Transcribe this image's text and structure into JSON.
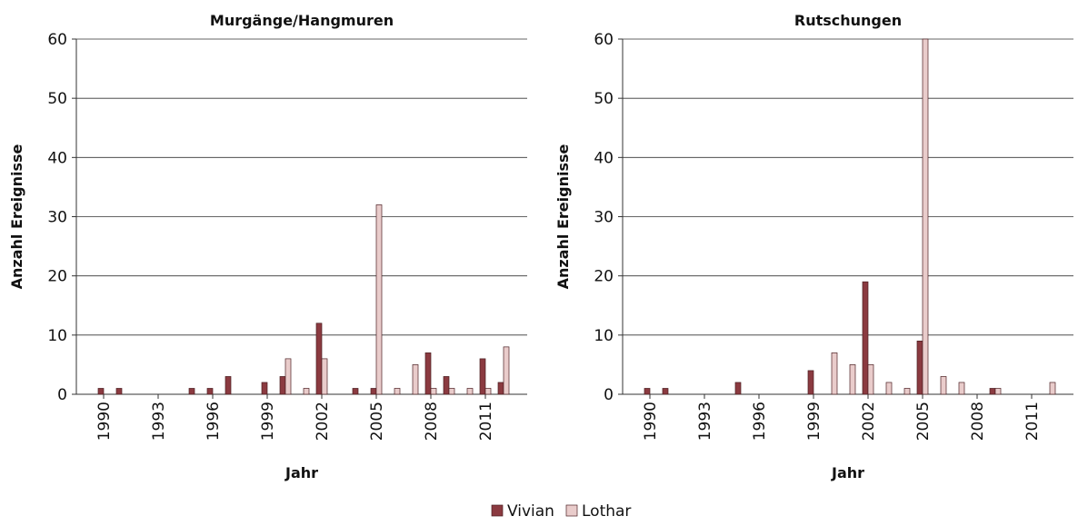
{
  "chart_data": [
    {
      "type": "bar",
      "title": "Murgänge/Hangmuren",
      "x_label": "Jahr",
      "y_label": "Anzahl Ereignisse",
      "x": [
        1990,
        1991,
        1992,
        1993,
        1994,
        1995,
        1996,
        1997,
        1998,
        1999,
        2000,
        2001,
        2002,
        2003,
        2004,
        2005,
        2006,
        2007,
        2008,
        2009,
        2010,
        2011,
        2012
      ],
      "series": [
        {
          "name": "Vivian",
          "color": "#8b3a40",
          "values": [
            1,
            1,
            0,
            0,
            0,
            1,
            1,
            3,
            0,
            2,
            3,
            0,
            12,
            0,
            1,
            1,
            0,
            0,
            7,
            3,
            0,
            6,
            2
          ]
        },
        {
          "name": "Lothar",
          "color": "#e9cccb",
          "values": [
            0,
            0,
            0,
            0,
            0,
            0,
            0,
            0,
            0,
            0,
            6,
            1,
            6,
            0,
            0,
            32,
            1,
            5,
            1,
            1,
            1,
            1,
            8
          ]
        }
      ],
      "xlim": [
        1988.5,
        2013.3
      ],
      "xticks": [
        1990,
        1993,
        1996,
        1999,
        2002,
        2005,
        2008,
        2011
      ],
      "ylim": [
        0,
        60
      ],
      "yticks": [
        0,
        10,
        20,
        30,
        40,
        50,
        60
      ],
      "grid": true
    },
    {
      "type": "bar",
      "title": "Rutschungen",
      "x_label": "Jahr",
      "y_label": "Anzahl Ereignisse",
      "x": [
        1990,
        1991,
        1992,
        1993,
        1994,
        1995,
        1996,
        1997,
        1998,
        1999,
        2000,
        2001,
        2002,
        2003,
        2004,
        2005,
        2006,
        2007,
        2008,
        2009,
        2010,
        2011,
        2012
      ],
      "series": [
        {
          "color": "#8b3a40",
          "values": [
            1,
            1,
            0,
            0,
            0,
            2,
            0,
            0,
            0,
            4,
            0,
            0,
            19,
            0,
            0,
            9,
            0,
            0,
            0,
            1,
            0,
            0,
            0
          ]
        },
        {
          "color": "#e9cccb",
          "values": [
            0,
            0,
            0,
            0,
            0,
            0,
            0,
            0,
            0,
            0,
            7,
            5,
            5,
            2,
            1,
            60,
            3,
            2,
            0,
            1,
            0,
            0,
            2
          ]
        }
      ],
      "xlim": [
        1988.5,
        2013.3
      ],
      "xticks": [
        1990,
        1993,
        1996,
        1999,
        2002,
        2005,
        2008,
        2011
      ],
      "ylim": [
        0,
        60
      ],
      "yticks": [
        0,
        10,
        20,
        30,
        40,
        50,
        60
      ],
      "grid": true
    }
  ]
}
